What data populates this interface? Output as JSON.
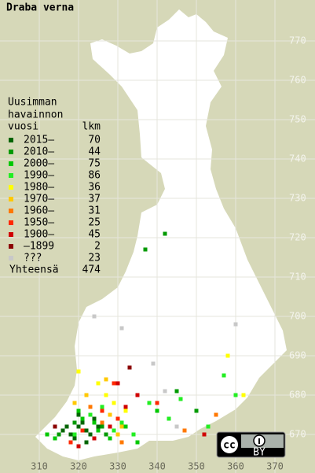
{
  "title": "Draba verna",
  "legend": {
    "header": [
      "Uusimman",
      "havainnon",
      "vuosi"
    ],
    "count_header": "lkm",
    "series": [
      {
        "name": "2015–",
        "count": 70,
        "color": "#006400",
        "x": [
          316,
          318,
          320,
          321,
          322,
          323,
          319,
          317,
          324,
          325,
          320,
          322
        ],
        "y": [
          671,
          670,
          672,
          673,
          671,
          670,
          669,
          672,
          674,
          672,
          675,
          668
        ]
      },
      {
        "name": "2010–",
        "count": 44,
        "color": "#009a00",
        "x": [
          342,
          337,
          315,
          319,
          326,
          327,
          345,
          350
        ],
        "y": [
          721,
          717,
          670,
          673,
          672,
          670,
          681,
          676
        ]
      },
      {
        "name": "2000–",
        "count": 75,
        "color": "#00c800",
        "x": [
          320,
          321,
          324,
          325,
          328,
          330,
          332,
          335,
          340,
          312,
          314
        ],
        "y": [
          676,
          674,
          673,
          671,
          669,
          670,
          672,
          668,
          676,
          670,
          669
        ]
      },
      {
        "name": "1990–",
        "count": 86,
        "color": "#22ee22",
        "x": [
          319,
          323,
          326,
          329,
          331,
          334,
          338,
          343,
          346,
          353,
          357,
          360
        ],
        "y": [
          670,
          675,
          677,
          671,
          673,
          670,
          678,
          674,
          679,
          672,
          685,
          680
        ]
      },
      {
        "name": "1980–",
        "count": 36,
        "color": "#ffff00",
        "x": [
          320,
          325,
          327,
          329,
          332,
          362,
          358
        ],
        "y": [
          686,
          683,
          680,
          678,
          676,
          680,
          690
        ]
      },
      {
        "name": "1970–",
        "count": 37,
        "color": "#ffc800",
        "x": [
          319,
          322,
          327,
          328,
          330,
          331
        ],
        "y": [
          678,
          680,
          684,
          675,
          670,
          672
        ]
      },
      {
        "name": "1960–",
        "count": 31,
        "color": "#ff7800",
        "x": [
          323,
          326,
          331,
          347,
          355
        ],
        "y": [
          677,
          673,
          668,
          671,
          675
        ]
      },
      {
        "name": "1950–",
        "count": 25,
        "color": "#ff2800",
        "x": [
          318,
          321,
          326,
          329,
          330,
          340
        ],
        "y": [
          668,
          671,
          676,
          683,
          674,
          678
        ]
      },
      {
        "name": "1900–",
        "count": 45,
        "color": "#d00000",
        "x": [
          320,
          324,
          328,
          332,
          335,
          352,
          330
        ],
        "y": [
          667,
          669,
          672,
          677,
          680,
          670,
          683
        ]
      },
      {
        "name": "–1899",
        "count": 2,
        "color": "#8b0000",
        "x": [
          314,
          333
        ],
        "y": [
          672,
          687
        ]
      },
      {
        "name": "???",
        "count": 23,
        "color": "#c8c8c8",
        "x": [
          324,
          331,
          339,
          345,
          360,
          342
        ],
        "y": [
          700,
          697,
          688,
          672,
          698,
          681
        ]
      }
    ],
    "total": {
      "label": "Yhteensä",
      "value": 474
    }
  },
  "grid": {
    "xticks": [
      310,
      320,
      330,
      340,
      350,
      360,
      370
    ],
    "yticks": [
      770,
      760,
      750,
      740,
      730,
      720,
      710,
      700,
      690,
      680,
      670
    ],
    "xlim": [
      300,
      380
    ],
    "ylim": [
      660.6,
      780.4
    ]
  },
  "license": {
    "cc": "cc",
    "by": "BY"
  }
}
